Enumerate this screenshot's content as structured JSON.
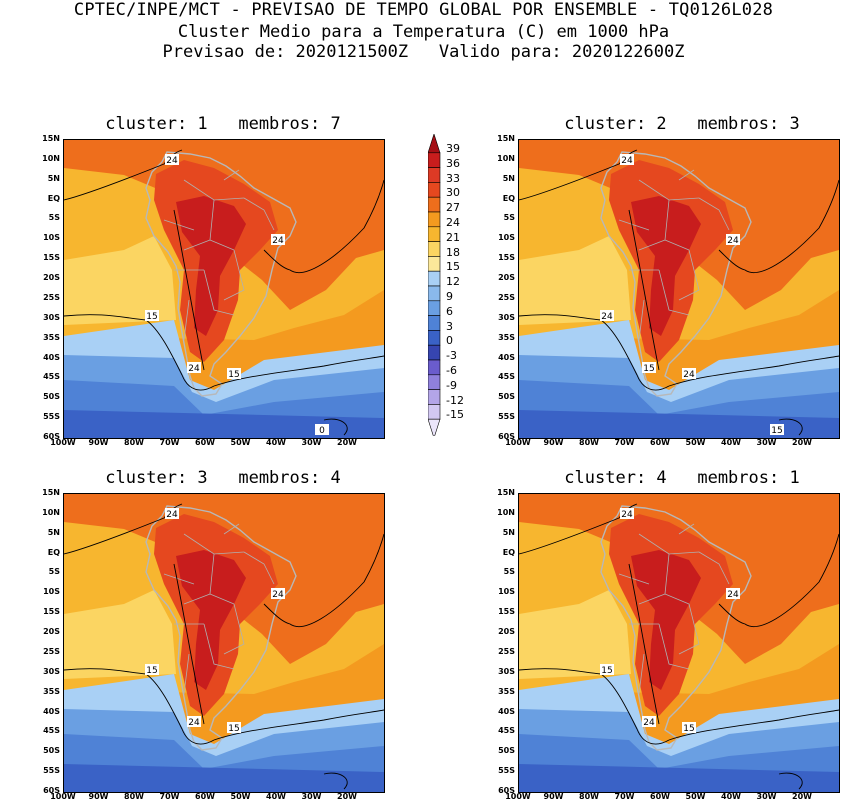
{
  "header": {
    "line1": "CPTEC/INPE/MCT - PREVISAO DE TEMPO GLOBAL POR ENSEMBLE - TQ0126L028",
    "line2": "Cluster Medio para a Temperatura (C) em 1000 hPa",
    "line3": "Previsao de: 2020121500Z   Valido para: 2020122600Z"
  },
  "panels": [
    {
      "title": "cluster: 1   membros: 7",
      "labels": [
        "24",
        "24",
        "15",
        "24",
        "15",
        "0"
      ]
    },
    {
      "title": "cluster: 2   membros: 3",
      "labels": [
        "24",
        "24",
        "24",
        "15",
        "24",
        "15"
      ]
    },
    {
      "title": "cluster: 3   membros: 4",
      "labels": [
        "24",
        "24",
        "15",
        "24",
        "15"
      ]
    },
    {
      "title": "cluster: 4   membros: 1",
      "labels": [
        "24",
        "24",
        "15",
        "24",
        "15"
      ]
    }
  ],
  "axes": {
    "y_ticks": [
      "15N",
      "10N",
      "5N",
      "EQ",
      "5S",
      "10S",
      "15S",
      "20S",
      "25S",
      "30S",
      "35S",
      "40S",
      "45S",
      "50S",
      "55S",
      "60S"
    ],
    "x_ticks": [
      "100W",
      "90W",
      "80W",
      "70W",
      "60W",
      "50W",
      "40W",
      "30W",
      "20W"
    ]
  },
  "colorbar": {
    "labels": [
      "39",
      "36",
      "33",
      "30",
      "27",
      "24",
      "21",
      "18",
      "15",
      "12",
      "9",
      "6",
      "3",
      "0",
      "-3",
      "-6",
      "-9",
      "-12",
      "-15"
    ],
    "colors": [
      "#a50f15",
      "#c81d1d",
      "#dd3a25",
      "#e5481f",
      "#ee6e1c",
      "#f49a1f",
      "#f7b62f",
      "#fbd562",
      "#fbe89a",
      "#a9d0f5",
      "#8ab9ec",
      "#6a9fe2",
      "#4f82d6",
      "#3a62c6",
      "#3645b0",
      "#6a5ccc",
      "#8f80dc",
      "#b3a5e8",
      "#d2c8f2",
      "#ebe5fa"
    ]
  }
}
